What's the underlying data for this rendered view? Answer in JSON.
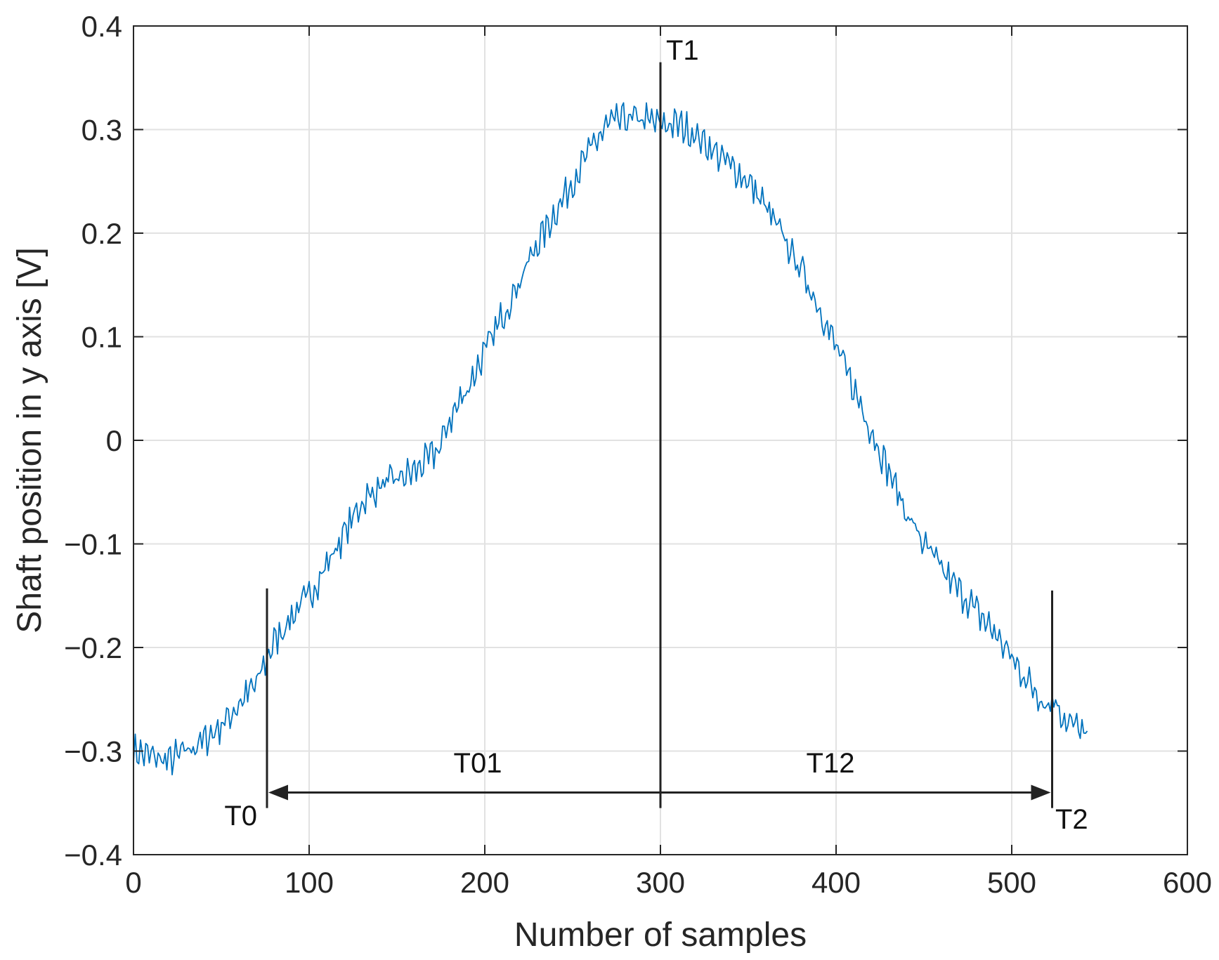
{
  "chart_data": {
    "type": "line",
    "title": "",
    "xlabel": "Number of samples",
    "ylabel": "Shaft position in y axis [V]",
    "xlim": [
      0,
      600
    ],
    "ylim": [
      -0.4,
      0.4
    ],
    "x_ticks": [
      "0",
      "100",
      "200",
      "300",
      "400",
      "500",
      "600"
    ],
    "y_ticks": [
      "0.4",
      "0.3",
      "0.2",
      "0.1",
      "0",
      "−0.1",
      "−0.2",
      "−0.3",
      "−0.4"
    ],
    "grid": true,
    "colors": {
      "series": "#0072bd",
      "markers": "#222222",
      "grid": "#e2e2e2",
      "axis": "#262626"
    },
    "series": [
      {
        "x": [
          0,
          10,
          20,
          30,
          40,
          50,
          60,
          70,
          76,
          80,
          90,
          100,
          110,
          120,
          130,
          140,
          150,
          160,
          170,
          175,
          180,
          190,
          200,
          210,
          220,
          230,
          240,
          250,
          260,
          270,
          280,
          290,
          300,
          310,
          320,
          330,
          340,
          350,
          360,
          370,
          380,
          390,
          400,
          410,
          420,
          430,
          440,
          450,
          460,
          470,
          480,
          490,
          500,
          510,
          520,
          525,
          530,
          540,
          543
        ],
        "values": [
          -0.3,
          -0.305,
          -0.31,
          -0.3,
          -0.29,
          -0.275,
          -0.255,
          -0.235,
          -0.21,
          -0.195,
          -0.17,
          -0.15,
          -0.12,
          -0.09,
          -0.06,
          -0.045,
          -0.038,
          -0.03,
          -0.015,
          -0.005,
          0.02,
          0.05,
          0.085,
          0.12,
          0.155,
          0.19,
          0.22,
          0.25,
          0.28,
          0.305,
          0.31,
          0.31,
          0.305,
          0.305,
          0.295,
          0.28,
          0.265,
          0.25,
          0.225,
          0.195,
          0.165,
          0.13,
          0.09,
          0.05,
          0.01,
          -0.03,
          -0.07,
          -0.1,
          -0.125,
          -0.145,
          -0.165,
          -0.185,
          -0.21,
          -0.235,
          -0.255,
          -0.25,
          -0.27,
          -0.28,
          -0.29
        ]
      }
    ],
    "markers": [
      {
        "name": "T0",
        "x": 76,
        "y_from": -0.355,
        "y_to": -0.143,
        "label": "T0"
      },
      {
        "name": "T1",
        "x": 300,
        "y_from": -0.355,
        "y_to": 0.365,
        "label": "T1"
      },
      {
        "name": "T2",
        "x": 523,
        "y_from": -0.355,
        "y_to": -0.145,
        "label": "T2"
      }
    ],
    "interval_arrow": {
      "from_x": 76,
      "to_x": 523,
      "y": -0.34,
      "labels": [
        "T01",
        "T12"
      ]
    }
  }
}
